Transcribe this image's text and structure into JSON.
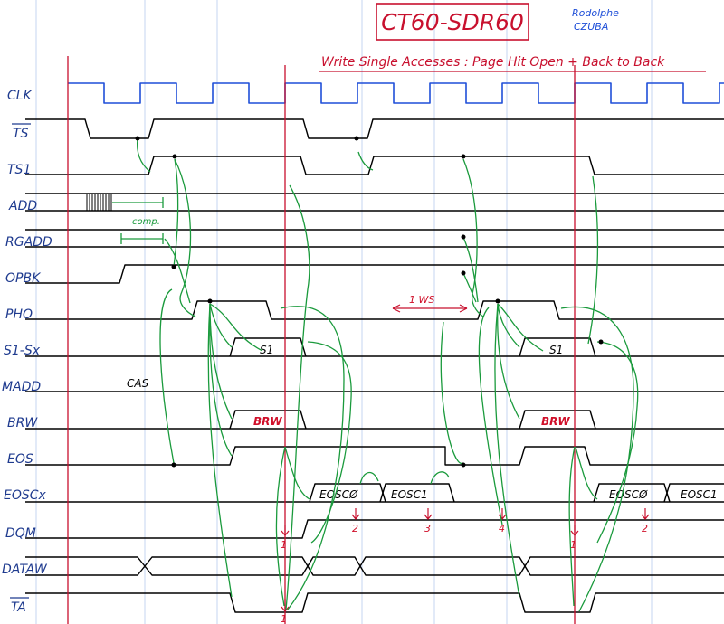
{
  "header": {
    "title": "CT60-SDR60",
    "author_line1": "Rodolphe",
    "author_line2": "CZUBA",
    "subtitle": "Write Single Accesses : Page Hit Open + Back to Back"
  },
  "signals": [
    {
      "label": "CLK"
    },
    {
      "label": "TS"
    },
    {
      "label": "TS1"
    },
    {
      "label": "ADD"
    },
    {
      "label": "RGADD"
    },
    {
      "label": "OPBK"
    },
    {
      "label": "PHO"
    },
    {
      "label": "S1-Sx"
    },
    {
      "label": "MADD"
    },
    {
      "label": "BRW"
    },
    {
      "label": "EOS"
    },
    {
      "label": "EOSCx"
    },
    {
      "label": "DQM"
    },
    {
      "label": "DATAW"
    },
    {
      "label": "TA"
    }
  ],
  "annotations": {
    "comp": "comp.",
    "cas": "CAS",
    "ws": "1 WS",
    "s1_a": "S1",
    "s1_b": "S1",
    "brw_a": "BRW",
    "brw_b": "BRW",
    "eosc0_a": "EOSCØ",
    "eosc1_a": "EOSC1",
    "eosc0_b": "EOSCØ",
    "eosc1_b": "EOSC1",
    "num1a": "1",
    "num2a": "2",
    "num3": "3",
    "num4": "4",
    "num1b": "1",
    "num2b": "2",
    "num1c": "1"
  },
  "colors": {
    "clock": "#1f4fd8",
    "marker": "#c8102e",
    "arrow": "#1a9a3c",
    "label": "#1f3b8f"
  }
}
